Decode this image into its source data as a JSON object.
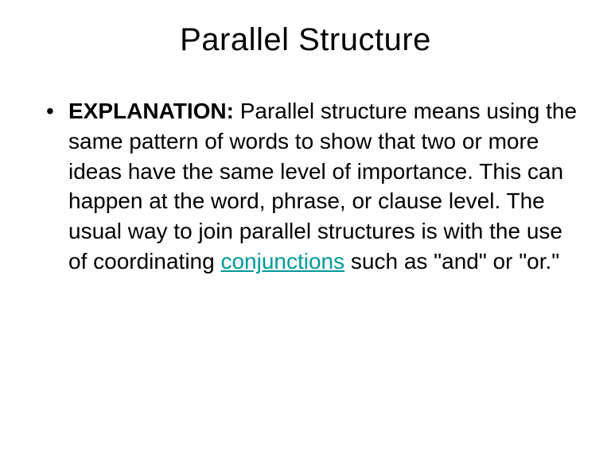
{
  "title": "Parallel Structure",
  "bullet": {
    "label": "EXPLANATION:",
    "text_before_link": " Parallel structure means using the same pattern of words to show that two or more ideas have the same level of importance. This can happen at the word, phrase, or clause level. The usual way to join parallel structures is with the use of coordinating ",
    "link_text": "conjunctions",
    "text_after_link": " such as \"and\" or \"or.\""
  },
  "colors": {
    "background": "#ffffff",
    "text": "#000000",
    "link": "#009999"
  },
  "typography": {
    "font_family": "Arial",
    "title_fontsize": 40,
    "body_fontsize": 28,
    "label_weight": "bold"
  }
}
